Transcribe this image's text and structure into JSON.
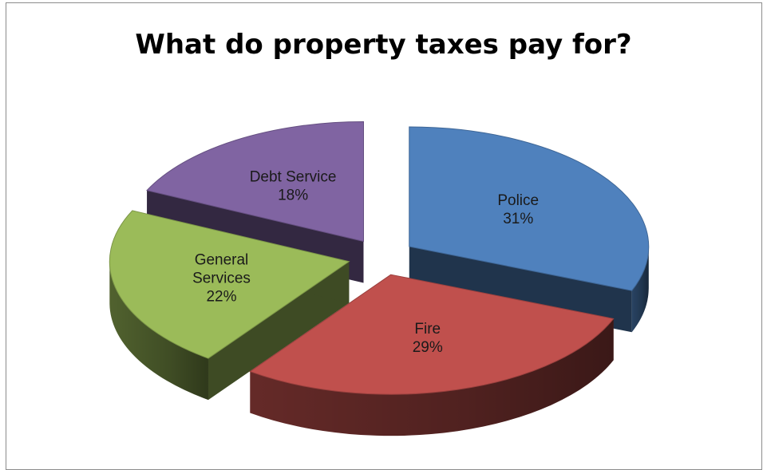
{
  "chart_data": {
    "type": "pie",
    "title": "What do property taxes pay for?",
    "style": "3d-exploded",
    "slices": [
      {
        "name": "Police",
        "value": 31,
        "label": "31%",
        "color": "#4f81bd"
      },
      {
        "name": "Fire",
        "value": 29,
        "label": "29%",
        "color": "#c0504d"
      },
      {
        "name": "General Services",
        "name_lines": [
          "General",
          "Services"
        ],
        "value": 22,
        "label": "22%",
        "color": "#9bbb59"
      },
      {
        "name": "Debt Service",
        "value": 18,
        "label": "18%",
        "color": "#8064a2"
      }
    ],
    "legend": "none"
  }
}
